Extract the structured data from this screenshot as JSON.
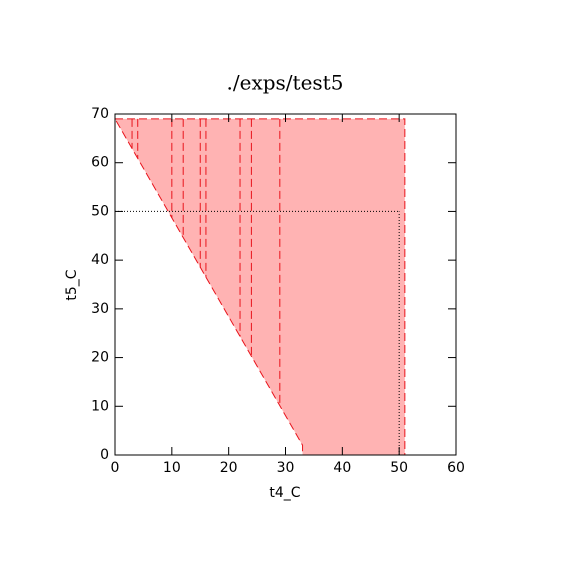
{
  "chart_data": {
    "type": "region",
    "title": "./exps/test5",
    "x_label": "t4_C",
    "y_label": "t5_C",
    "xlim": [
      0,
      60
    ],
    "ylim": [
      0,
      70
    ],
    "xticks": [
      0,
      10,
      20,
      30,
      40,
      50,
      60
    ],
    "yticks": [
      0,
      10,
      20,
      30,
      40,
      50,
      60,
      70
    ],
    "fill_color": "#ffb3b3",
    "line_color": "#e8141c",
    "region": {
      "x": [
        0,
        51,
        51,
        33,
        33
      ],
      "y": [
        69,
        69,
        0,
        0,
        2
      ]
    },
    "dashed_lines": [
      {
        "x": [
          3,
          3
        ],
        "y": [
          69,
          62.9
        ]
      },
      {
        "x": [
          4,
          4
        ],
        "y": [
          69,
          60.9
        ]
      },
      {
        "x": [
          10,
          10
        ],
        "y": [
          69,
          48.7
        ]
      },
      {
        "x": [
          12,
          12
        ],
        "y": [
          69,
          44.6
        ]
      },
      {
        "x": [
          15,
          15
        ],
        "y": [
          69,
          38.5
        ]
      },
      {
        "x": [
          16,
          16
        ],
        "y": [
          69,
          36.5
        ]
      },
      {
        "x": [
          22,
          22
        ],
        "y": [
          69,
          24.3
        ]
      },
      {
        "x": [
          24,
          24
        ],
        "y": [
          69,
          20.3
        ]
      },
      {
        "x": [
          29,
          29
        ],
        "y": [
          69,
          10.1
        ]
      }
    ],
    "reference_lines": [
      {
        "x": [
          0,
          50
        ],
        "y": [
          50,
          50
        ]
      },
      {
        "x": [
          50,
          50
        ],
        "y": [
          0,
          50
        ]
      }
    ]
  }
}
